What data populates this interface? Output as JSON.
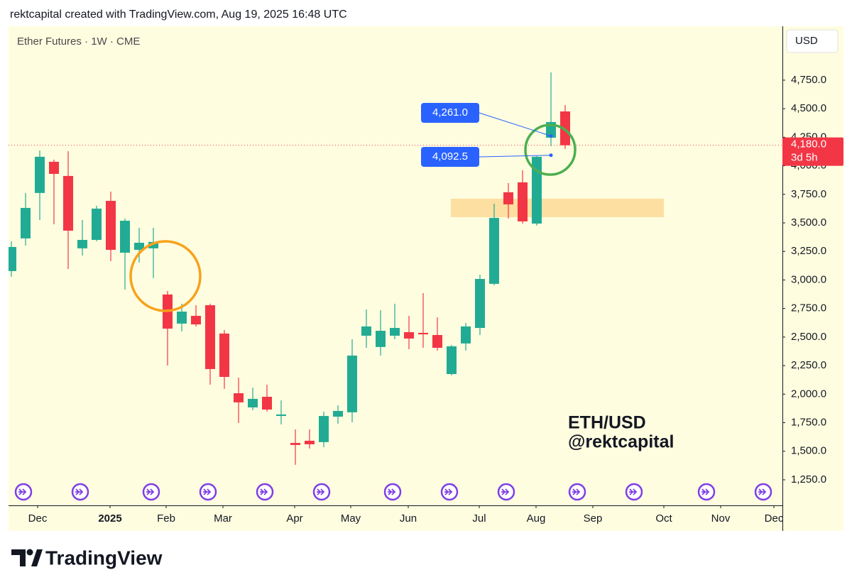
{
  "header": "rektcapital created with TradingView.com, Aug 19, 2025 16:48 UTC",
  "branding": "TradingView",
  "chart_data": {
    "type": "candlestick",
    "title": "Ether Futures · 1W · CME",
    "currency": "USD",
    "watermark": [
      "ETH/USD",
      "@rektcapital"
    ],
    "categories": [
      null,
      null,
      null,
      null,
      null,
      null,
      null,
      null,
      null,
      null,
      null,
      null,
      null,
      null,
      null,
      null,
      null,
      null,
      null,
      null,
      null,
      null,
      null,
      null,
      null,
      null,
      null,
      null,
      null,
      null,
      null,
      null,
      null,
      null,
      null,
      null,
      null,
      null,
      null,
      null
    ],
    "open": [
      3078,
      3364,
      3762,
      4035,
      3911,
      3277,
      3351,
      3693,
      3239,
      3264,
      3277,
      2873,
      2618,
      2686,
      2779,
      2531,
      2008,
      1884,
      1977,
      1809,
      1573,
      1592,
      1580,
      1803,
      1841,
      2512,
      2413,
      2512,
      2543,
      2537,
      2518,
      2176,
      2444,
      2580,
      2966,
      3768,
      3855,
      3494,
      4246,
      4476
    ],
    "high": [
      3339,
      3762,
      4135,
      4054,
      4128,
      3525,
      3650,
      3774,
      3538,
      3457,
      3457,
      2904,
      2792,
      2779,
      2792,
      2562,
      2145,
      2058,
      2083,
      1946,
      1691,
      1691,
      1847,
      1903,
      2481,
      2742,
      2736,
      2792,
      2686,
      2885,
      2674,
      2431,
      2624,
      3047,
      3668,
      3849,
      3961,
      4085,
      4818,
      4532
    ],
    "low": [
      3028,
      3302,
      3525,
      3488,
      3096,
      3214,
      3339,
      3165,
      2916,
      3152,
      3016,
      2251,
      2549,
      2593,
      2083,
      2046,
      1747,
      1859,
      1847,
      1735,
      1381,
      1524,
      1536,
      1741,
      1753,
      2406,
      2338,
      2481,
      2394,
      2406,
      2381,
      2164,
      2381,
      2518,
      2953,
      3538,
      3494,
      3476,
      4172,
      4147
    ],
    "close": [
      3289,
      3631,
      4079,
      3929,
      3432,
      3351,
      3625,
      3264,
      3519,
      3326,
      3333,
      2574,
      2723,
      2611,
      2220,
      2151,
      1928,
      1959,
      1865,
      1822,
      1555,
      1561,
      1809,
      1853,
      2338,
      2593,
      2555,
      2580,
      2487,
      2524,
      2406,
      2419,
      2593,
      3009,
      3544,
      3662,
      3513,
      4079,
      4383,
      4180
    ],
    "up_color": "#22ab94",
    "down_color": "#f23645",
    "xlim": [
      -0.2,
      54.3
    ],
    "xticks": [
      {
        "value": 1.85,
        "label": "Dec"
      },
      {
        "value": 6.95,
        "label": "2025"
      },
      {
        "value": 10.9,
        "label": "Feb"
      },
      {
        "value": 14.9,
        "label": "Mar"
      },
      {
        "value": 19.95,
        "label": "Apr"
      },
      {
        "value": 23.9,
        "label": "May"
      },
      {
        "value": 27.95,
        "label": "Jun"
      },
      {
        "value": 32.95,
        "label": "Jul"
      },
      {
        "value": 36.95,
        "label": "Aug"
      },
      {
        "value": 40.95,
        "label": "Sep"
      },
      {
        "value": 45.95,
        "label": "Oct"
      },
      {
        "value": 49.95,
        "label": "Nov"
      },
      {
        "value": 53.7,
        "label": "Dec"
      }
    ],
    "ylim": [
      1026,
      5222
    ],
    "yticks": [
      {
        "value": 1250,
        "label": "1,250.0"
      },
      {
        "value": 1500,
        "label": "1,500.0"
      },
      {
        "value": 1750,
        "label": "1,750.0"
      },
      {
        "value": 2000,
        "label": "2,000.0"
      },
      {
        "value": 2250,
        "label": "2,250.0"
      },
      {
        "value": 2500,
        "label": "2,500.0"
      },
      {
        "value": 2750,
        "label": "2,750.0"
      },
      {
        "value": 3000,
        "label": "3,000.0"
      },
      {
        "value": 3250,
        "label": "3,250.0"
      },
      {
        "value": 3500,
        "label": "3,500.0"
      },
      {
        "value": 3750,
        "label": "3,750.0"
      },
      {
        "value": 4000,
        "label": "4,000.0"
      },
      {
        "value": 4250,
        "label": "4,250.0"
      },
      {
        "value": 4500,
        "label": "4,500.0"
      },
      {
        "value": 4750,
        "label": "4,750.0"
      }
    ],
    "current_price": {
      "value": 4180,
      "label": "4,180.0",
      "countdown": "3d 5h",
      "color": "#f23645"
    },
    "price_markers": [
      {
        "value": 4261,
        "label": "4,261.0"
      },
      {
        "value": 4092.5,
        "label": "4,092.5"
      }
    ],
    "marker_color": "#2962ff",
    "zone": {
      "x": [
        30.95,
        45.95
      ],
      "range": [
        3550,
        3712
      ],
      "color": "#fcdc9a"
    }
  }
}
